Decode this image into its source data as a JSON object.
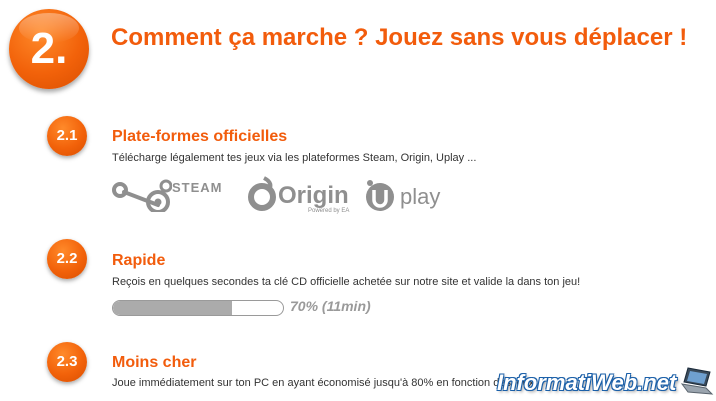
{
  "header": {
    "step": "2.",
    "title": "Comment ça marche ? Jouez sans vous déplacer !"
  },
  "sections": [
    {
      "number": "2.1",
      "title": "Plate-formes officielles",
      "description": "Télécharge légalement tes jeux via les plateformes Steam, Origin, Uplay ..."
    },
    {
      "number": "2.2",
      "title": "Rapide",
      "description": "Reçois en quelques secondes ta clé CD officielle achetée sur notre site et valide la dans ton jeu!"
    },
    {
      "number": "2.3",
      "title": "Moins cher",
      "description": "Joue immédiatement sur ton PC en ayant économisé jusqu'à 80% en fonction des jeux!"
    }
  ],
  "platforms": {
    "steam": "STEAM",
    "origin": "Origin",
    "origin_sub": "Powered by EA",
    "uplay": "play"
  },
  "progress": {
    "value": 0.7,
    "label": "70% (11min)"
  },
  "watermark": {
    "text": "InformatiWeb.net"
  },
  "colors": {
    "accent": "#f25c0c",
    "logo_gray": "#8f8f8f",
    "progress_fill": "#ababab"
  }
}
